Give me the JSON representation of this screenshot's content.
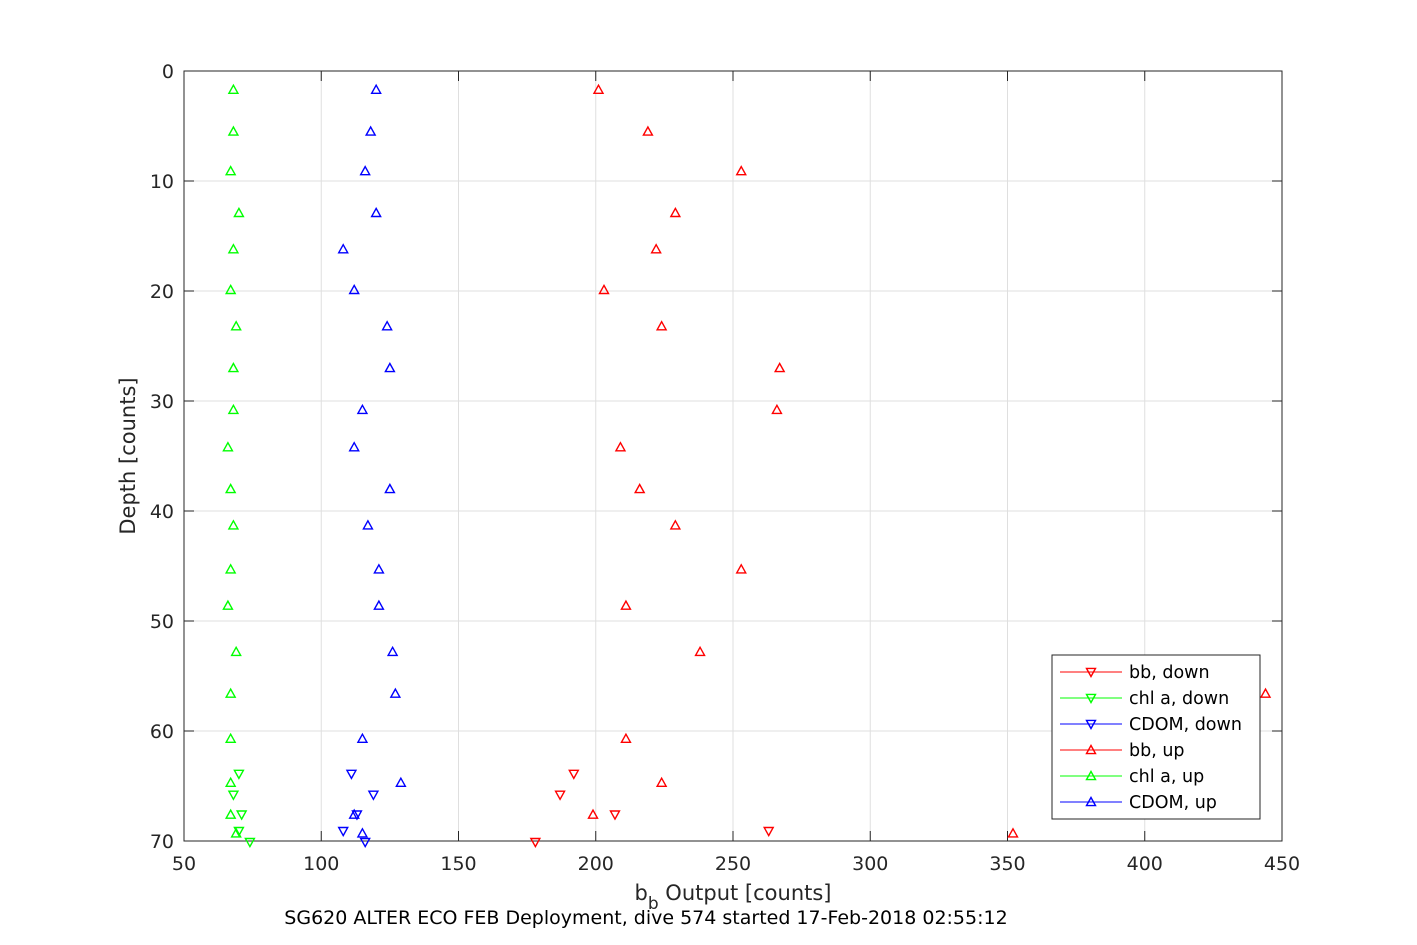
{
  "chart_data": {
    "type": "scatter",
    "xlabel_main": "b",
    "xlabel_sub": "b",
    "xlabel_rest": " Output [counts]",
    "ylabel": "Depth [counts]",
    "caption": "SG620 ALTER ECO FEB Deployment, dive 574 started 17-Feb-2018 02:55:12",
    "xlim": [
      50,
      450
    ],
    "ylim": [
      0,
      70
    ],
    "y_reversed": true,
    "x_ticks": [
      50,
      100,
      150,
      200,
      250,
      300,
      350,
      400,
      450
    ],
    "x_tick_labels": [
      "50",
      "100",
      "150",
      "200",
      "250",
      "300",
      "350",
      "400",
      "450"
    ],
    "y_ticks": [
      0,
      10,
      20,
      30,
      40,
      50,
      60,
      70
    ],
    "y_tick_labels": [
      "0",
      "10",
      "20",
      "30",
      "40",
      "50",
      "60",
      "70"
    ],
    "grid": true,
    "legend_position": "bottom-right",
    "series": [
      {
        "name": "bb, down",
        "color": "#ff0000",
        "marker": "triangle-down",
        "points": [
          [
            192,
            63.9
          ],
          [
            187,
            65.8
          ],
          [
            207,
            67.6
          ],
          [
            263,
            69.1
          ],
          [
            178,
            70.1
          ]
        ]
      },
      {
        "name": "chl a, down",
        "color": "#00ff00",
        "marker": "triangle-down",
        "points": [
          [
            70,
            63.9
          ],
          [
            68,
            65.8
          ],
          [
            71,
            67.6
          ],
          [
            70,
            69.1
          ],
          [
            74,
            70.1
          ]
        ]
      },
      {
        "name": "CDOM, down",
        "color": "#0000ff",
        "marker": "triangle-down",
        "points": [
          [
            111,
            63.9
          ],
          [
            119,
            65.8
          ],
          [
            113,
            67.6
          ],
          [
            108,
            69.1
          ],
          [
            116,
            70.1
          ]
        ]
      },
      {
        "name": "bb, up",
        "color": "#ff0000",
        "marker": "triangle-up",
        "points": [
          [
            201,
            1.7
          ],
          [
            219,
            5.5
          ],
          [
            253,
            9.1
          ],
          [
            229,
            12.9
          ],
          [
            222,
            16.2
          ],
          [
            203,
            19.9
          ],
          [
            224,
            23.2
          ],
          [
            267,
            27.0
          ],
          [
            266,
            30.8
          ],
          [
            209,
            34.2
          ],
          [
            216,
            38.0
          ],
          [
            229,
            41.3
          ],
          [
            253,
            45.3
          ],
          [
            211,
            48.6
          ],
          [
            238,
            52.8
          ],
          [
            444,
            56.6
          ],
          [
            211,
            60.7
          ],
          [
            224,
            64.7
          ],
          [
            199,
            67.6
          ],
          [
            352,
            69.3
          ]
        ]
      },
      {
        "name": "chl a, up",
        "color": "#00ff00",
        "marker": "triangle-up",
        "points": [
          [
            68,
            1.7
          ],
          [
            68,
            5.5
          ],
          [
            67,
            9.1
          ],
          [
            70,
            12.9
          ],
          [
            68,
            16.2
          ],
          [
            67,
            19.9
          ],
          [
            69,
            23.2
          ],
          [
            68,
            27.0
          ],
          [
            68,
            30.8
          ],
          [
            66,
            34.2
          ],
          [
            67,
            38.0
          ],
          [
            68,
            41.3
          ],
          [
            67,
            45.3
          ],
          [
            66,
            48.6
          ],
          [
            69,
            52.8
          ],
          [
            67,
            56.6
          ],
          [
            67,
            60.7
          ],
          [
            67,
            64.7
          ],
          [
            67,
            67.6
          ],
          [
            69,
            69.3
          ]
        ]
      },
      {
        "name": "CDOM, up",
        "color": "#0000ff",
        "marker": "triangle-up",
        "points": [
          [
            120,
            1.7
          ],
          [
            118,
            5.5
          ],
          [
            116,
            9.1
          ],
          [
            120,
            12.9
          ],
          [
            108,
            16.2
          ],
          [
            112,
            19.9
          ],
          [
            124,
            23.2
          ],
          [
            125,
            27.0
          ],
          [
            115,
            30.8
          ],
          [
            112,
            34.2
          ],
          [
            125,
            38.0
          ],
          [
            117,
            41.3
          ],
          [
            121,
            45.3
          ],
          [
            121,
            48.6
          ],
          [
            126,
            52.8
          ],
          [
            127,
            56.6
          ],
          [
            115,
            60.7
          ],
          [
            129,
            64.7
          ],
          [
            112,
            67.6
          ],
          [
            115,
            69.3
          ]
        ]
      }
    ]
  }
}
